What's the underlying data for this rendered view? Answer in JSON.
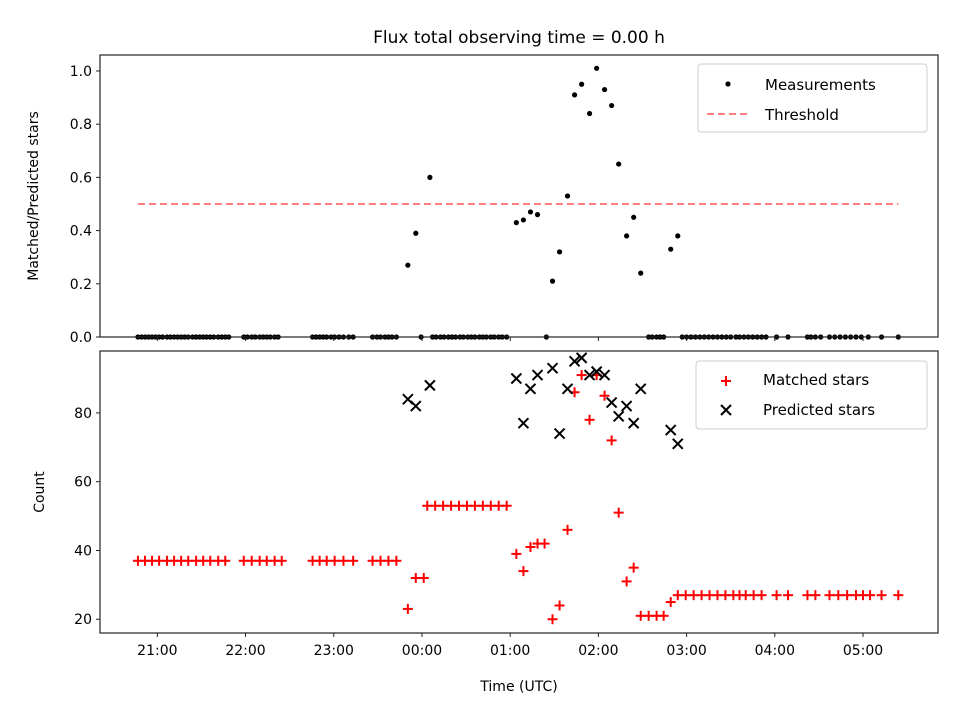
{
  "chart_data": [
    {
      "type": "scatter",
      "title": "Flux total observing time = 0.00 h",
      "xlabel": "",
      "ylabel": "Matched/Predicted stars",
      "ylim": [
        0,
        1.06
      ],
      "yticks": [
        "0.0",
        "0.2",
        "0.4",
        "0.6",
        "0.8",
        "1.0"
      ],
      "ytick_values": [
        0,
        0.2,
        0.4,
        0.6,
        0.8,
        1.0
      ],
      "xlim_hours": [
        20.35,
        29.85
      ],
      "xtick_hours": [
        21,
        22,
        23,
        24,
        25,
        26,
        27,
        28,
        29
      ],
      "legend_position": "upper-right",
      "series": [
        {
          "name": "Measurements",
          "marker": "dot",
          "color": "#000000",
          "points": [
            [
              20.78,
              0
            ],
            [
              20.82,
              0
            ],
            [
              20.86,
              0
            ],
            [
              20.9,
              0
            ],
            [
              20.94,
              0
            ],
            [
              20.98,
              0
            ],
            [
              21.02,
              0
            ],
            [
              21.06,
              0
            ],
            [
              21.11,
              0
            ],
            [
              21.15,
              0
            ],
            [
              21.19,
              0
            ],
            [
              21.23,
              0
            ],
            [
              21.27,
              0
            ],
            [
              21.31,
              0
            ],
            [
              21.35,
              0
            ],
            [
              21.4,
              0
            ],
            [
              21.44,
              0
            ],
            [
              21.48,
              0
            ],
            [
              21.52,
              0
            ],
            [
              21.56,
              0
            ],
            [
              21.6,
              0
            ],
            [
              21.64,
              0
            ],
            [
              21.69,
              0
            ],
            [
              21.73,
              0
            ],
            [
              21.77,
              0
            ],
            [
              21.81,
              0
            ],
            [
              21.98,
              0
            ],
            [
              22.02,
              0
            ],
            [
              22.07,
              0
            ],
            [
              22.11,
              0
            ],
            [
              22.16,
              0
            ],
            [
              22.2,
              0
            ],
            [
              22.24,
              0
            ],
            [
              22.28,
              0
            ],
            [
              22.33,
              0
            ],
            [
              22.37,
              0
            ],
            [
              22.76,
              0
            ],
            [
              22.8,
              0
            ],
            [
              22.84,
              0
            ],
            [
              22.88,
              0
            ],
            [
              22.92,
              0
            ],
            [
              22.97,
              0
            ],
            [
              23.01,
              0
            ],
            [
              23.06,
              0
            ],
            [
              23.11,
              0
            ],
            [
              23.17,
              0
            ],
            [
              23.22,
              0
            ],
            [
              23.44,
              0
            ],
            [
              23.49,
              0
            ],
            [
              23.53,
              0
            ],
            [
              23.58,
              0
            ],
            [
              23.62,
              0
            ],
            [
              23.66,
              0
            ],
            [
              23.71,
              0
            ],
            [
              23.84,
              0.27
            ],
            [
              23.93,
              0.39
            ],
            [
              23.99,
              0
            ],
            [
              24.09,
              0.6
            ],
            [
              24.12,
              0
            ],
            [
              24.16,
              0
            ],
            [
              24.21,
              0
            ],
            [
              24.25,
              0
            ],
            [
              24.3,
              0
            ],
            [
              24.34,
              0
            ],
            [
              24.38,
              0
            ],
            [
              24.43,
              0
            ],
            [
              24.47,
              0
            ],
            [
              24.52,
              0
            ],
            [
              24.56,
              0
            ],
            [
              24.6,
              0
            ],
            [
              24.65,
              0
            ],
            [
              24.69,
              0
            ],
            [
              24.73,
              0
            ],
            [
              24.78,
              0
            ],
            [
              24.82,
              0
            ],
            [
              24.87,
              0
            ],
            [
              24.91,
              0
            ],
            [
              24.96,
              0
            ],
            [
              25.07,
              0.43
            ],
            [
              25.15,
              0.44
            ],
            [
              25.23,
              0.47
            ],
            [
              25.31,
              0.46
            ],
            [
              25.41,
              0
            ],
            [
              25.48,
              0.21
            ],
            [
              25.56,
              0.32
            ],
            [
              25.65,
              0.53
            ],
            [
              25.73,
              0.91
            ],
            [
              25.81,
              0.95
            ],
            [
              25.9,
              0.84
            ],
            [
              25.98,
              1.01
            ],
            [
              26.07,
              0.93
            ],
            [
              26.15,
              0.87
            ],
            [
              26.23,
              0.65
            ],
            [
              26.32,
              0.38
            ],
            [
              26.4,
              0.45
            ],
            [
              26.48,
              0.24
            ],
            [
              26.57,
              0
            ],
            [
              26.61,
              0
            ],
            [
              26.66,
              0
            ],
            [
              26.7,
              0
            ],
            [
              26.74,
              0
            ],
            [
              26.82,
              0.33
            ],
            [
              26.9,
              0.38
            ],
            [
              26.95,
              0
            ],
            [
              27.0,
              0
            ],
            [
              27.05,
              0
            ],
            [
              27.1,
              0
            ],
            [
              27.15,
              0
            ],
            [
              27.2,
              0
            ],
            [
              27.25,
              0
            ],
            [
              27.3,
              0
            ],
            [
              27.35,
              0
            ],
            [
              27.4,
              0
            ],
            [
              27.45,
              0
            ],
            [
              27.5,
              0
            ],
            [
              27.56,
              0
            ],
            [
              27.6,
              0
            ],
            [
              27.65,
              0
            ],
            [
              27.7,
              0
            ],
            [
              27.75,
              0
            ],
            [
              27.8,
              0
            ],
            [
              27.85,
              0
            ],
            [
              27.9,
              0
            ],
            [
              28.02,
              0
            ],
            [
              28.15,
              0
            ],
            [
              28.37,
              0
            ],
            [
              28.41,
              0
            ],
            [
              28.46,
              0
            ],
            [
              28.52,
              0
            ],
            [
              28.62,
              0
            ],
            [
              28.68,
              0
            ],
            [
              28.74,
              0
            ],
            [
              28.8,
              0
            ],
            [
              28.86,
              0
            ],
            [
              28.92,
              0
            ],
            [
              28.98,
              0
            ],
            [
              29.06,
              0
            ],
            [
              29.21,
              0
            ],
            [
              29.4,
              0
            ]
          ]
        },
        {
          "name": "Threshold",
          "line": "dashed",
          "color": "#ff7f7f",
          "y": 0.5,
          "x_range_hours": [
            20.78,
            29.4
          ]
        }
      ]
    },
    {
      "type": "scatter",
      "xlabel": "Time (UTC)",
      "ylabel": "Count",
      "ylim": [
        16,
        98
      ],
      "yticks": [
        "20",
        "40",
        "60",
        "80"
      ],
      "ytick_values": [
        20,
        40,
        60,
        80
      ],
      "xtick_labels": [
        "21:00",
        "22:00",
        "23:00",
        "00:00",
        "01:00",
        "02:00",
        "03:00",
        "04:00",
        "05:00"
      ],
      "xtick_hours": [
        21,
        22,
        23,
        24,
        25,
        26,
        27,
        28,
        29
      ],
      "xlim_hours": [
        20.35,
        29.85
      ],
      "legend_position": "upper-right",
      "series": [
        {
          "name": "Matched stars",
          "marker": "plus",
          "color": "#ff0000",
          "points": [
            [
              20.78,
              37
            ],
            [
              20.86,
              37
            ],
            [
              20.94,
              37
            ],
            [
              21.02,
              37
            ],
            [
              21.11,
              37
            ],
            [
              21.19,
              37
            ],
            [
              21.27,
              37
            ],
            [
              21.35,
              37
            ],
            [
              21.44,
              37
            ],
            [
              21.52,
              37
            ],
            [
              21.6,
              37
            ],
            [
              21.69,
              37
            ],
            [
              21.77,
              37
            ],
            [
              21.98,
              37
            ],
            [
              22.07,
              37
            ],
            [
              22.16,
              37
            ],
            [
              22.24,
              37
            ],
            [
              22.33,
              37
            ],
            [
              22.41,
              37
            ],
            [
              22.76,
              37
            ],
            [
              22.84,
              37
            ],
            [
              22.92,
              37
            ],
            [
              23.01,
              37
            ],
            [
              23.11,
              37
            ],
            [
              23.22,
              37
            ],
            [
              23.44,
              37
            ],
            [
              23.53,
              37
            ],
            [
              23.62,
              37
            ],
            [
              23.71,
              37
            ],
            [
              23.84,
              23
            ],
            [
              23.93,
              32
            ],
            [
              24.02,
              32
            ],
            [
              24.06,
              53
            ],
            [
              24.15,
              53
            ],
            [
              24.24,
              53
            ],
            [
              24.33,
              53
            ],
            [
              24.42,
              53
            ],
            [
              24.51,
              53
            ],
            [
              24.6,
              53
            ],
            [
              24.69,
              53
            ],
            [
              24.78,
              53
            ],
            [
              24.87,
              53
            ],
            [
              24.96,
              53
            ],
            [
              25.07,
              39
            ],
            [
              25.15,
              34
            ],
            [
              25.23,
              41
            ],
            [
              25.31,
              42
            ],
            [
              25.39,
              42
            ],
            [
              25.48,
              20
            ],
            [
              25.56,
              24
            ],
            [
              25.65,
              46
            ],
            [
              25.73,
              86
            ],
            [
              25.81,
              91
            ],
            [
              25.9,
              78
            ],
            [
              25.98,
              91
            ],
            [
              26.07,
              85
            ],
            [
              26.15,
              72
            ],
            [
              26.23,
              51
            ],
            [
              26.32,
              31
            ],
            [
              26.4,
              35
            ],
            [
              26.48,
              21
            ],
            [
              26.57,
              21
            ],
            [
              26.66,
              21
            ],
            [
              26.74,
              21
            ],
            [
              26.82,
              25
            ],
            [
              26.9,
              27
            ],
            [
              26.99,
              27
            ],
            [
              27.08,
              27
            ],
            [
              27.17,
              27
            ],
            [
              27.26,
              27
            ],
            [
              27.35,
              27
            ],
            [
              27.44,
              27
            ],
            [
              27.53,
              27
            ],
            [
              27.6,
              27
            ],
            [
              27.67,
              27
            ],
            [
              27.76,
              27
            ],
            [
              27.85,
              27
            ],
            [
              28.02,
              27
            ],
            [
              28.15,
              27
            ],
            [
              28.37,
              27
            ],
            [
              28.46,
              27
            ],
            [
              28.62,
              27
            ],
            [
              28.72,
              27
            ],
            [
              28.82,
              27
            ],
            [
              28.92,
              27
            ],
            [
              29.0,
              27
            ],
            [
              29.08,
              27
            ],
            [
              29.21,
              27
            ],
            [
              29.4,
              27
            ]
          ]
        },
        {
          "name": "Predicted stars",
          "marker": "x",
          "color": "#000000",
          "points": [
            [
              23.84,
              84
            ],
            [
              23.93,
              82
            ],
            [
              24.09,
              88
            ],
            [
              25.07,
              90
            ],
            [
              25.15,
              77
            ],
            [
              25.23,
              87
            ],
            [
              25.31,
              91
            ],
            [
              25.48,
              93
            ],
            [
              25.56,
              74
            ],
            [
              25.65,
              87
            ],
            [
              25.73,
              95
            ],
            [
              25.81,
              96
            ],
            [
              25.9,
              91
            ],
            [
              25.98,
              92
            ],
            [
              26.07,
              91
            ],
            [
              26.15,
              83
            ],
            [
              26.23,
              79
            ],
            [
              26.32,
              82
            ],
            [
              26.4,
              77
            ],
            [
              26.48,
              87
            ],
            [
              26.82,
              75
            ],
            [
              26.9,
              71
            ]
          ]
        }
      ]
    }
  ]
}
